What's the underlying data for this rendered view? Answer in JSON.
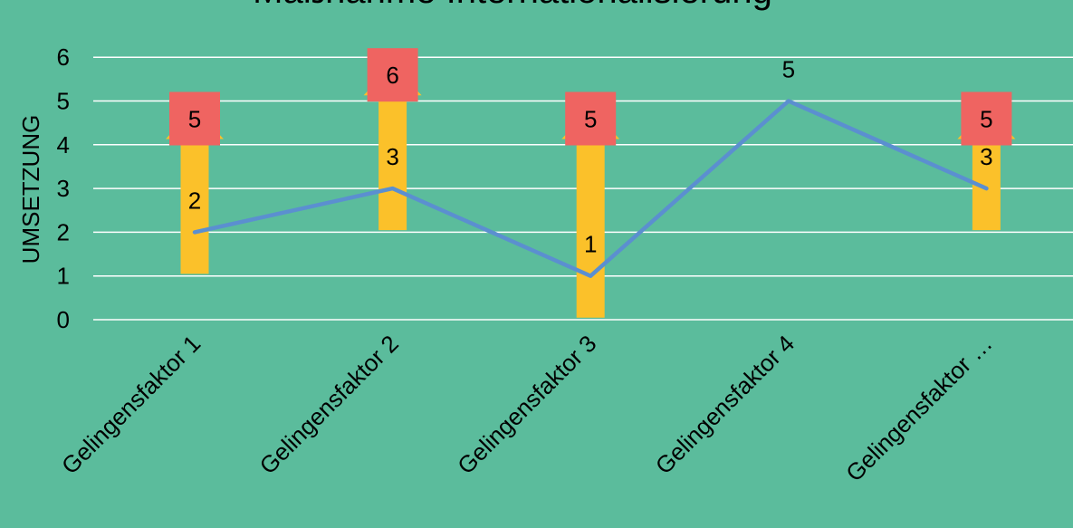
{
  "chart_data": {
    "type": "line",
    "title": "Maßnahme Internationalisierung",
    "xlabel": "",
    "ylabel": "UMSETZUNG",
    "ylim": [
      0,
      6
    ],
    "yticks": [
      0,
      1,
      2,
      3,
      4,
      5,
      6
    ],
    "grid": true,
    "categories": [
      "Gelingensfaktor 1",
      "Gelingensfaktor 2",
      "Gelingensfaktor 3",
      "Gelingensfaktor 4",
      "Gelingensfaktor …"
    ],
    "series": [
      {
        "values": [
          2,
          3,
          1,
          5,
          3
        ],
        "data_labels": [
          "2",
          "3",
          "1",
          "5",
          "3"
        ]
      }
    ],
    "targets": [
      5,
      6,
      5,
      null,
      5
    ],
    "target_labels": [
      "5",
      "6",
      "5",
      "",
      "5"
    ]
  },
  "colors": {
    "background": "#5bbc9c",
    "line": "#5b8fd0",
    "grid": "#ffffff",
    "arrow": "#fbc12a",
    "target_box": "#ef6461"
  }
}
